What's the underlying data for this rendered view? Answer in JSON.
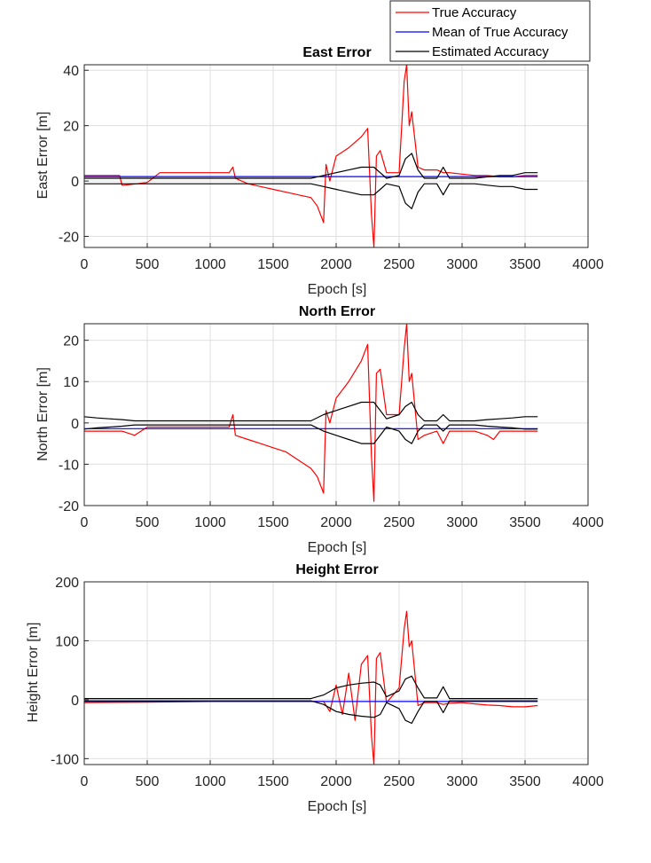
{
  "chart_data": [
    {
      "type": "line",
      "title": "East Error",
      "xlabel": "Epoch [s]",
      "ylabel": "East Error [m]",
      "xlim": [
        0,
        4000
      ],
      "ylim": [
        -24,
        42
      ],
      "xticks": [
        0,
        500,
        1000,
        1500,
        2000,
        2500,
        3000,
        3500,
        4000
      ],
      "yticks": [
        -20,
        0,
        20,
        40
      ],
      "grid": true,
      "series": [
        {
          "name": "True Accuracy",
          "color": "#ff0000",
          "x": [
            0,
            280,
            300,
            320,
            500,
            600,
            1150,
            1180,
            1200,
            1300,
            1400,
            1500,
            1600,
            1700,
            1800,
            1850,
            1900,
            1920,
            1950,
            2000,
            2100,
            2200,
            2250,
            2280,
            2300,
            2320,
            2350,
            2400,
            2500,
            2540,
            2560,
            2580,
            2600,
            2650,
            2700,
            2800,
            2850,
            2900,
            3000,
            3100,
            3200,
            3300,
            3400,
            3500,
            3600
          ],
          "y": [
            2,
            2,
            -1.5,
            -1.5,
            -0.5,
            3,
            3,
            5,
            1,
            -1,
            -2,
            -3,
            -4,
            -5,
            -6,
            -9,
            -15,
            6,
            0,
            9,
            12,
            16,
            19,
            -12,
            -24,
            9,
            11,
            3,
            3,
            36,
            42,
            20,
            25,
            5,
            4,
            4,
            3,
            3,
            2.5,
            2,
            2,
            1.5,
            1.5,
            2,
            2
          ]
        },
        {
          "name": "Mean of True Accuracy",
          "color": "#0000ff",
          "x": [
            0,
            3600
          ],
          "y": [
            1.6,
            1.6
          ]
        },
        {
          "name": "Estimated Accuracy",
          "color": "#000000",
          "x": [
            0,
            1800,
            1900,
            2000,
            2100,
            2200,
            2300,
            2350,
            2400,
            2500,
            2550,
            2600,
            2650,
            2700,
            2800,
            2850,
            2900,
            3000,
            3100,
            3200,
            3300,
            3400,
            3500,
            3600
          ],
          "y": [
            1,
            1,
            2,
            3,
            4,
            5,
            5,
            3,
            1,
            2,
            8,
            10,
            4,
            1,
            1,
            5,
            1,
            1,
            1,
            1.5,
            2,
            2,
            3,
            3
          ],
          "mirror": true
        }
      ]
    },
    {
      "type": "line",
      "title": "North Error",
      "xlabel": "Epoch [s]",
      "ylabel": "North Error [m]",
      "xlim": [
        0,
        4000
      ],
      "ylim": [
        -20,
        24
      ],
      "xticks": [
        0,
        500,
        1000,
        1500,
        2000,
        2500,
        3000,
        3500,
        4000
      ],
      "yticks": [
        -20,
        -10,
        0,
        10,
        20
      ],
      "grid": true,
      "series": [
        {
          "name": "True Accuracy",
          "color": "#ff0000",
          "x": [
            0,
            300,
            400,
            500,
            600,
            1150,
            1180,
            1200,
            1300,
            1400,
            1500,
            1600,
            1700,
            1800,
            1850,
            1900,
            1920,
            1950,
            2000,
            2100,
            2200,
            2250,
            2280,
            2300,
            2320,
            2350,
            2400,
            2500,
            2540,
            2560,
            2580,
            2600,
            2650,
            2700,
            2800,
            2850,
            2900,
            3000,
            3100,
            3200,
            3250,
            3300,
            3400,
            3500,
            3600
          ],
          "y": [
            -2,
            -2,
            -3,
            -1,
            -1,
            -1,
            2,
            -3,
            -4,
            -5,
            -6,
            -7,
            -9,
            -11,
            -13,
            -17,
            3,
            0,
            6,
            10,
            15,
            19,
            -8,
            -19,
            12,
            13,
            2,
            2,
            18,
            24,
            10,
            12,
            -4,
            -3,
            -2,
            -5,
            -2,
            -2,
            -2,
            -3,
            -4,
            -2,
            -2,
            -2,
            -2
          ]
        },
        {
          "name": "Mean of True Accuracy",
          "color": "#0000ff",
          "x": [
            0,
            3600
          ],
          "y": [
            -1.4,
            -1.4
          ]
        },
        {
          "name": "Estimated Accuracy",
          "color": "#000000",
          "x": [
            0,
            100,
            200,
            300,
            400,
            1800,
            1900,
            2000,
            2100,
            2200,
            2300,
            2350,
            2400,
            2500,
            2550,
            2600,
            2650,
            2700,
            2800,
            2850,
            2900,
            3000,
            3100,
            3200,
            3300,
            3400,
            3500,
            3600
          ],
          "y": [
            1.5,
            1.2,
            1,
            0.8,
            0.5,
            0.5,
            2,
            3,
            4,
            5,
            5,
            3,
            1,
            2,
            4,
            5,
            2,
            0.5,
            0.5,
            2,
            0.5,
            0.5,
            0.5,
            0.8,
            1,
            1.2,
            1.5,
            1.5
          ],
          "mirror": true
        }
      ]
    },
    {
      "type": "line",
      "title": "Height Error",
      "xlabel": "Epoch [s]",
      "ylabel": "Height Error [m]",
      "xlim": [
        0,
        4000
      ],
      "ylim": [
        -110,
        200
      ],
      "xticks": [
        0,
        500,
        1000,
        1500,
        2000,
        2500,
        3000,
        3500,
        4000
      ],
      "yticks": [
        -100,
        0,
        100,
        200
      ],
      "grid": true,
      "series": [
        {
          "name": "True Accuracy",
          "color": "#ff0000",
          "x": [
            0,
            500,
            1000,
            1500,
            1900,
            1950,
            2000,
            2050,
            2100,
            2150,
            2200,
            2250,
            2280,
            2300,
            2320,
            2350,
            2400,
            2500,
            2540,
            2560,
            2580,
            2600,
            2650,
            2700,
            2800,
            2850,
            2900,
            3000,
            3100,
            3200,
            3300,
            3400,
            3500,
            3600
          ],
          "y": [
            -5,
            -4,
            -3,
            -3,
            -3,
            -20,
            25,
            -25,
            45,
            -35,
            60,
            75,
            -60,
            -110,
            70,
            80,
            -5,
            20,
            120,
            150,
            90,
            100,
            -10,
            -5,
            -5,
            -8,
            -6,
            -5,
            -7,
            -9,
            -10,
            -12,
            -12,
            -10
          ]
        },
        {
          "name": "Mean of True Accuracy",
          "color": "#0000ff",
          "x": [
            0,
            3600
          ],
          "y": [
            -3,
            -3
          ]
        },
        {
          "name": "Estimated Accuracy",
          "color": "#000000",
          "x": [
            0,
            1800,
            1900,
            2000,
            2100,
            2200,
            2300,
            2350,
            2400,
            2500,
            2550,
            2600,
            2650,
            2700,
            2800,
            2850,
            2900,
            3000,
            3600
          ],
          "y": [
            2,
            2,
            8,
            20,
            25,
            28,
            30,
            25,
            5,
            15,
            35,
            40,
            20,
            3,
            3,
            22,
            2,
            2,
            2
          ],
          "mirror": true
        }
      ]
    }
  ],
  "legend": {
    "placement": "top-right",
    "entries": [
      {
        "label": "True Accuracy",
        "color": "#ff0000"
      },
      {
        "label": "Mean of True Accuracy",
        "color": "#0000ff"
      },
      {
        "label": "Estimated Accuracy",
        "color": "#000000"
      }
    ]
  }
}
